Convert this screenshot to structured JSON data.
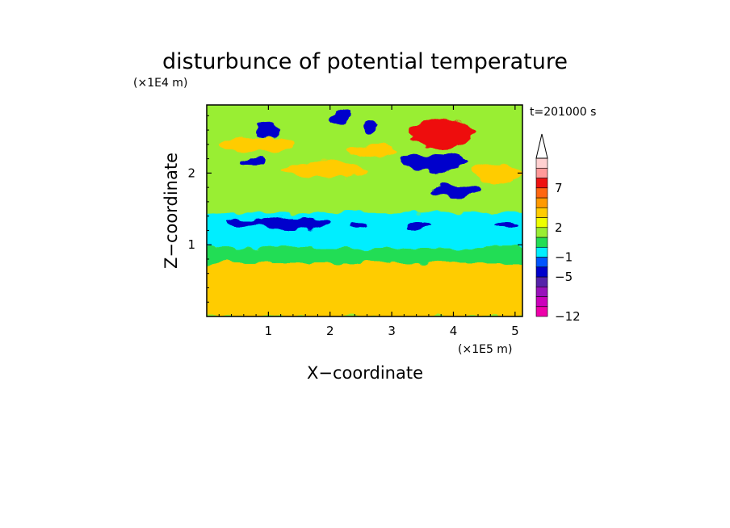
{
  "chart_data": {
    "type": "heatmap",
    "title": "disturbunce of potential temperature",
    "time_label": "t=201000 s",
    "xlabel": "X−coordinate",
    "ylabel": "Z−coordinate",
    "x_unit": "(×1E5 m)",
    "y_unit": "(×1E4 m)",
    "xlim": [
      0,
      5.12
    ],
    "ylim": [
      0,
      2.95
    ],
    "x_ticks": [
      1,
      2,
      3,
      4,
      5
    ],
    "y_ticks": [
      1,
      2
    ],
    "x_tick_labels": [
      "1",
      "2",
      "3",
      "4",
      "5"
    ],
    "y_tick_labels": [
      "1",
      "2"
    ],
    "grid": false,
    "colorbar": {
      "placement": "right",
      "bands_bottom_to_top": [
        "#ee00aa",
        "#cc00bb",
        "#9911bb",
        "#5522aa",
        "#0000cc",
        "#0055ff",
        "#00eeff",
        "#22dd55",
        "#99ee33",
        "#eeff00",
        "#ffcc00",
        "#ff9900",
        "#ff6611",
        "#ee1111",
        "#ff9999",
        "#ffd0d0"
      ],
      "tick_labels": [
        "−12",
        "−5",
        "−1",
        "2",
        "7"
      ],
      "tick_levels": [
        -12,
        -5,
        -1,
        2,
        7
      ],
      "extend_max_arrow": true
    },
    "features": [
      {
        "kind": "band",
        "value": -1,
        "z_from": 0.95,
        "z_to": 1.45
      },
      {
        "kind": "band",
        "value": 2,
        "z_from": 0,
        "z_to": 0.75
      },
      {
        "kind": "band",
        "value": 0,
        "z_from": 0.75,
        "z_to": 0.95
      },
      {
        "kind": "blob",
        "value": -5,
        "x": 1.4,
        "z": 1.3,
        "rx": 0.6,
        "rz": 0.09
      },
      {
        "kind": "blob",
        "value": -5,
        "x": 0.6,
        "z": 1.3,
        "rx": 0.3,
        "rz": 0.06
      },
      {
        "kind": "blob",
        "value": -5,
        "x": 2.45,
        "z": 1.28,
        "rx": 0.12,
        "rz": 0.04
      },
      {
        "kind": "blob",
        "value": -5,
        "x": 3.45,
        "z": 1.27,
        "rx": 0.2,
        "rz": 0.05
      },
      {
        "kind": "blob",
        "value": -5,
        "x": 4.85,
        "z": 1.28,
        "rx": 0.2,
        "rz": 0.05
      },
      {
        "kind": "blob",
        "value": 7,
        "x": 3.8,
        "z": 2.55,
        "rx": 0.5,
        "rz": 0.22
      },
      {
        "kind": "blob",
        "value": -5,
        "x": 3.7,
        "z": 2.15,
        "rx": 0.55,
        "rz": 0.12
      },
      {
        "kind": "blob",
        "value": -5,
        "x": 4.05,
        "z": 1.75,
        "rx": 0.4,
        "rz": 0.08
      },
      {
        "kind": "blob",
        "value": -5,
        "x": 1.0,
        "z": 2.6,
        "rx": 0.2,
        "rz": 0.1
      },
      {
        "kind": "blob",
        "value": -5,
        "x": 2.15,
        "z": 2.78,
        "rx": 0.15,
        "rz": 0.1
      },
      {
        "kind": "blob",
        "value": -5,
        "x": 2.65,
        "z": 2.65,
        "rx": 0.12,
        "rz": 0.09
      },
      {
        "kind": "blob",
        "value": -5,
        "x": 0.75,
        "z": 2.15,
        "rx": 0.18,
        "rz": 0.06
      },
      {
        "kind": "blob",
        "value": 2,
        "x": 0.8,
        "z": 2.4,
        "rx": 0.6,
        "rz": 0.1
      },
      {
        "kind": "blob",
        "value": 2,
        "x": 1.9,
        "z": 2.05,
        "rx": 0.7,
        "rz": 0.12
      },
      {
        "kind": "blob",
        "value": 2,
        "x": 2.7,
        "z": 2.3,
        "rx": 0.4,
        "rz": 0.1
      },
      {
        "kind": "blob",
        "value": 2,
        "x": 4.7,
        "z": 2.0,
        "rx": 0.4,
        "rz": 0.12
      },
      {
        "kind": "blob",
        "value": 2,
        "x": 4.3,
        "z": 0.45,
        "rx": 0.5,
        "rz": 0.15
      }
    ]
  }
}
